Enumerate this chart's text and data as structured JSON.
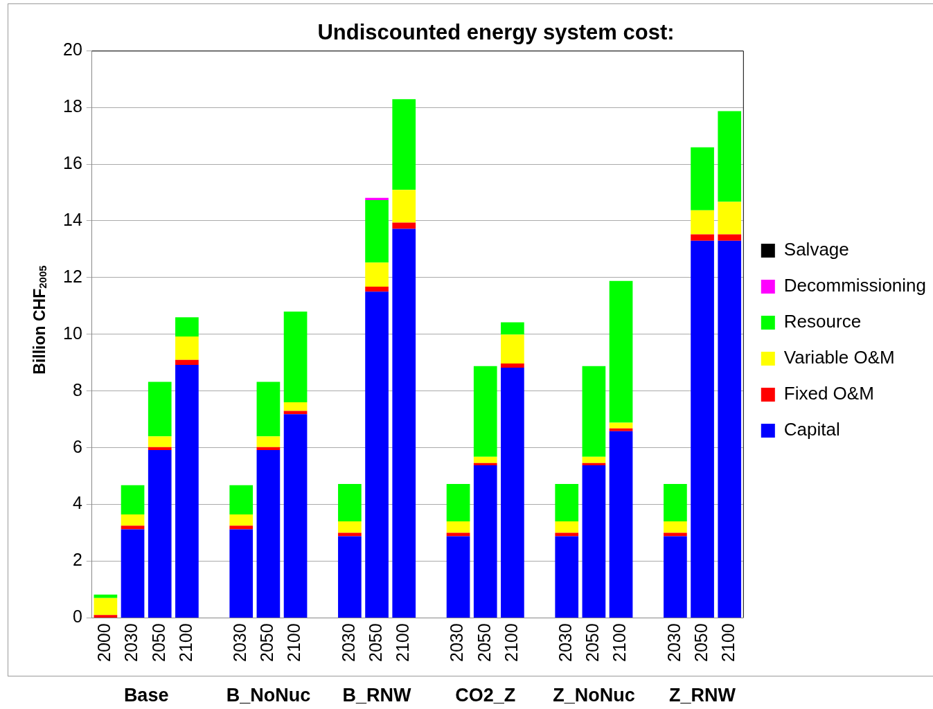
{
  "chart_data": {
    "type": "bar",
    "title": "Undiscounted energy system cost:",
    "ylabel": "Billion CHF$_{2005}$",
    "categories": [
      "2000",
      "2030",
      "2050",
      "2100",
      null,
      "2030",
      "2050",
      "2100",
      null,
      "2030",
      "2050",
      "2100",
      null,
      "2030",
      "2050",
      "2100",
      null,
      "2030",
      "2050",
      "2100",
      null,
      "2030",
      "2050",
      "2100"
    ],
    "annotations": [
      "Base",
      "B_NoNuc",
      "B_RNW",
      "CO2_Z",
      "Z_NoNuc",
      "Z_RNW"
    ],
    "stacked": true,
    "ylim": [
      0,
      20
    ],
    "yticks": [
      0,
      2,
      4,
      6,
      8,
      10,
      12,
      14,
      16,
      18,
      20
    ],
    "grid": "y",
    "legend": "right",
    "series": [
      {
        "name": "Capital",
        "color": "#0000ff",
        "values": [
          0,
          3.12,
          5.92,
          8.92,
          null,
          3.12,
          5.92,
          7.18,
          null,
          2.88,
          11.5,
          13.72,
          null,
          2.88,
          5.38,
          8.82,
          null,
          2.88,
          5.38,
          6.58,
          null,
          2.88,
          13.3,
          13.3
        ]
      },
      {
        "name": "Fixed O&M",
        "color": "#ff0000",
        "values": [
          0.1,
          0.13,
          0.1,
          0.18,
          null,
          0.13,
          0.1,
          0.12,
          null,
          0.12,
          0.18,
          0.22,
          null,
          0.12,
          0.08,
          0.15,
          null,
          0.12,
          0.08,
          0.1,
          null,
          0.12,
          0.22,
          0.22
        ]
      },
      {
        "name": "Variable O&M",
        "color": "#ffff00",
        "values": [
          0.6,
          0.4,
          0.38,
          0.82,
          null,
          0.4,
          0.38,
          0.3,
          null,
          0.4,
          0.85,
          1.15,
          null,
          0.4,
          0.22,
          1.02,
          null,
          0.4,
          0.22,
          0.2,
          null,
          0.4,
          0.85,
          1.15
        ]
      },
      {
        "name": "Resource",
        "color": "#00ff00",
        "values": [
          0.12,
          1.03,
          1.92,
          0.68,
          null,
          1.03,
          1.92,
          3.2,
          null,
          1.32,
          2.2,
          3.2,
          null,
          1.32,
          3.2,
          0.43,
          null,
          1.32,
          3.2,
          5.0,
          null,
          1.32,
          2.22,
          3.2
        ]
      },
      {
        "name": "Decommissioning",
        "color": "#ff00ff",
        "values": [
          0,
          0,
          0,
          0,
          null,
          0,
          0,
          0,
          null,
          0,
          0.08,
          0,
          null,
          0,
          0,
          0,
          null,
          0,
          0,
          0,
          null,
          0,
          0,
          0
        ]
      },
      {
        "name": "Salvage",
        "color": "#000000",
        "values": [
          0,
          0,
          0,
          0,
          null,
          0,
          0,
          0,
          null,
          0,
          0,
          0,
          null,
          0,
          0,
          0,
          null,
          0,
          0,
          0,
          null,
          0,
          0,
          0
        ]
      }
    ]
  }
}
